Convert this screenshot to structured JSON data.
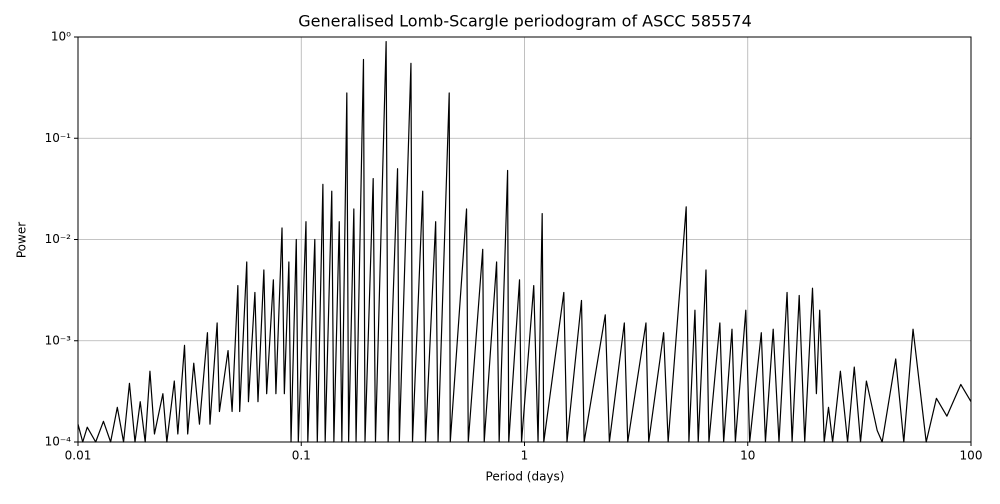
{
  "chart_data": {
    "type": "line",
    "title": "Generalised Lomb-Scargle periodogram of ASCC 585574",
    "x_label": "Period (days)",
    "y_label": "Power",
    "xscale": "log",
    "yscale": "log",
    "grid": true,
    "xlim": [
      0.01,
      100
    ],
    "ylim": [
      0.0001,
      1
    ],
    "xticks": [
      0.01,
      0.1,
      1,
      10,
      100
    ],
    "yticks": [
      {
        "value": 0.0001,
        "label": "10⁻⁴"
      },
      {
        "value": 0.001,
        "label": "10⁻³"
      },
      {
        "value": 0.01,
        "label": "10⁻²"
      },
      {
        "value": 0.1,
        "label": "10⁻¹"
      },
      {
        "value": 1,
        "label": "10⁰"
      }
    ],
    "x": [
      0.01,
      0.0105,
      0.011,
      0.012,
      0.013,
      0.014,
      0.015,
      0.016,
      0.017,
      0.018,
      0.019,
      0.02,
      0.021,
      0.022,
      0.024,
      0.025,
      0.027,
      0.028,
      0.03,
      0.031,
      0.033,
      0.035,
      0.038,
      0.039,
      0.042,
      0.043,
      0.047,
      0.049,
      0.052,
      0.053,
      0.057,
      0.058,
      0.062,
      0.064,
      0.068,
      0.07,
      0.075,
      0.077,
      0.082,
      0.084,
      0.088,
      0.09,
      0.095,
      0.097,
      0.105,
      0.107,
      0.115,
      0.118,
      0.125,
      0.128,
      0.137,
      0.14,
      0.148,
      0.152,
      0.16,
      0.163,
      0.172,
      0.176,
      0.19,
      0.193,
      0.21,
      0.215,
      0.24,
      0.245,
      0.27,
      0.275,
      0.31,
      0.315,
      0.35,
      0.36,
      0.4,
      0.41,
      0.46,
      0.465,
      0.55,
      0.56,
      0.65,
      0.66,
      0.75,
      0.77,
      0.84,
      0.85,
      0.95,
      0.97,
      1.1,
      1.15,
      1.2,
      1.22,
      1.5,
      1.55,
      1.8,
      1.85,
      2.3,
      2.4,
      2.8,
      2.9,
      3.5,
      3.6,
      4.2,
      4.4,
      5.3,
      5.45,
      5.8,
      6.0,
      6.5,
      6.7,
      7.5,
      7.8,
      8.5,
      8.8,
      9.8,
      10.2,
      11.5,
      12,
      13,
      13.8,
      15,
      15.8,
      17,
      18,
      19.5,
      20.3,
      21,
      22,
      23,
      24,
      26,
      28,
      30,
      32,
      34,
      38,
      40,
      46,
      50,
      55,
      63,
      70,
      78,
      90,
      100
    ],
    "series": [
      {
        "color": "#000000",
        "values": [
          0.00015,
          0.0001,
          0.00014,
          0.0001,
          0.00016,
          0.0001,
          0.00022,
          0.0001,
          0.00038,
          0.0001,
          0.00025,
          0.0001,
          0.0005,
          0.00012,
          0.0003,
          0.0001,
          0.0004,
          0.00012,
          0.0009,
          0.00012,
          0.0006,
          0.00015,
          0.0012,
          0.00015,
          0.0015,
          0.0002,
          0.0008,
          0.0002,
          0.0035,
          0.0002,
          0.006,
          0.00025,
          0.003,
          0.00025,
          0.005,
          0.0003,
          0.004,
          0.0003,
          0.013,
          0.0003,
          0.006,
          0.0001,
          0.01,
          0.0001,
          0.015,
          0.0001,
          0.01,
          0.0001,
          0.035,
          0.0001,
          0.03,
          0.0001,
          0.015,
          0.0001,
          0.28,
          0.0001,
          0.02,
          0.0001,
          0.6,
          0.0001,
          0.04,
          0.0001,
          0.9,
          0.0001,
          0.05,
          0.0001,
          0.55,
          0.0001,
          0.03,
          0.0001,
          0.015,
          0.0001,
          0.28,
          0.0001,
          0.02,
          0.0001,
          0.008,
          0.0001,
          0.006,
          0.0001,
          0.048,
          0.0001,
          0.004,
          0.0001,
          0.0035,
          0.0001,
          0.018,
          0.0001,
          0.003,
          0.0001,
          0.0025,
          0.0001,
          0.0018,
          0.0001,
          0.0015,
          0.0001,
          0.0015,
          0.0001,
          0.0012,
          0.0001,
          0.021,
          0.0001,
          0.002,
          0.0001,
          0.005,
          0.0001,
          0.0015,
          0.0001,
          0.0013,
          0.0001,
          0.002,
          0.0001,
          0.0012,
          0.0001,
          0.0013,
          0.0001,
          0.003,
          0.0001,
          0.0028,
          0.0001,
          0.0033,
          0.0003,
          0.002,
          0.0001,
          0.00022,
          0.0001,
          0.0005,
          0.0001,
          0.00055,
          0.0001,
          0.0004,
          0.00013,
          0.0001,
          0.00066,
          0.0001,
          0.0013,
          0.0001,
          0.00027,
          0.00018,
          0.00037,
          0.00025
        ]
      }
    ]
  }
}
